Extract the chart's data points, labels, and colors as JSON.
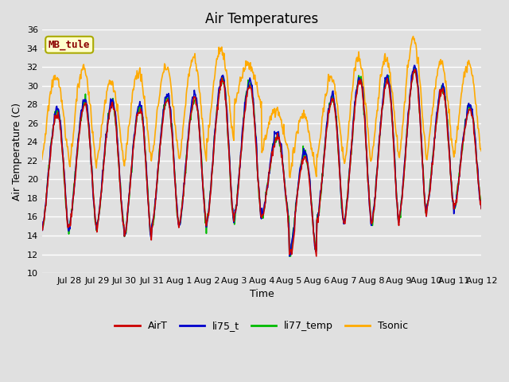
{
  "title": "Air Temperatures",
  "ylabel": "Air Temperature (C)",
  "xlabel": "Time",
  "site_label": "MB_tule",
  "ylim": [
    10,
    36
  ],
  "yticks": [
    10,
    12,
    14,
    16,
    18,
    20,
    22,
    24,
    26,
    28,
    30,
    32,
    34,
    36
  ],
  "background_color": "#e0e0e0",
  "plot_bg_color": "#e0e0e0",
  "grid_color": "#ffffff",
  "line_colors": {
    "AirT": "#cc0000",
    "li75_t": "#0000cc",
    "li77_temp": "#00bb00",
    "Tsonic": "#ffaa00"
  },
  "line_widths": {
    "AirT": 1.2,
    "li75_t": 1.2,
    "li77_temp": 1.2,
    "Tsonic": 1.2
  },
  "xtick_labels": [
    "Jul 28",
    "Jul 29",
    "Jul 30",
    "Jul 31",
    "Aug 1",
    "Aug 2",
    "Aug 3",
    "Aug 4",
    "Aug 5",
    "Aug 6",
    "Aug 7",
    "Aug 8",
    "Aug 9",
    "Aug 10",
    "Aug 11",
    "Aug 12"
  ],
  "title_fontsize": 12,
  "label_fontsize": 9,
  "tick_fontsize": 8
}
